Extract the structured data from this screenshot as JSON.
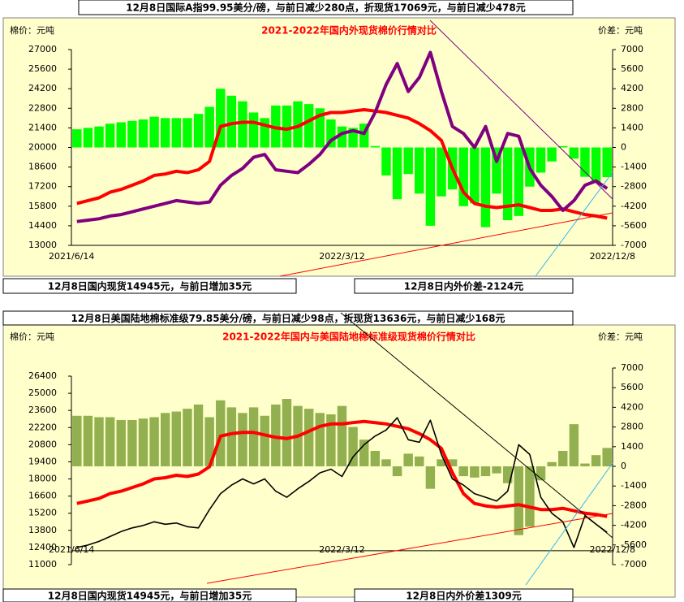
{
  "chart_data": [
    {
      "type": "combo",
      "headline": "12月8日国际A指99.95美分/磅，与前日减少280点，折现货17069元，与前日减少478元",
      "title": "2021-2022年国内外现货棉价行情对比",
      "ylabel": "棉价：元吨",
      "y2label": "价差：元吨",
      "footnotes": [
        "12月8日国内现货14945元，与前日增加35元",
        "12月8日内外价差-2124元"
      ],
      "categories": [
        "2021/6/14",
        null,
        null,
        null,
        null,
        null,
        null,
        null,
        null,
        null,
        null,
        null,
        null,
        null,
        null,
        null,
        null,
        null,
        null,
        null,
        null,
        null,
        null,
        null,
        "2022/3/12",
        null,
        null,
        null,
        null,
        null,
        null,
        null,
        null,
        null,
        null,
        null,
        null,
        null,
        null,
        null,
        null,
        null,
        null,
        null,
        null,
        null,
        null,
        null,
        "2022/12/8"
      ],
      "ylim": [
        13000,
        27000
      ],
      "yticks": [
        13000,
        14400,
        15800,
        17200,
        18600,
        20000,
        21400,
        22800,
        24200,
        25600,
        27000
      ],
      "y2lim": [
        -7000,
        7000
      ],
      "y2ticks": [
        -7000,
        -5600,
        -4200,
        -2800,
        -1400,
        0,
        1400,
        2800,
        4200,
        5600,
        7000
      ],
      "series": [
        {
          "type": "bar",
          "axis": "y2",
          "color": "#00ff00",
          "values": [
            1300,
            1400,
            1500,
            1700,
            1800,
            1900,
            2000,
            2200,
            2100,
            2100,
            2100,
            2400,
            2900,
            4200,
            3700,
            3300,
            2500,
            2100,
            3000,
            3000,
            3300,
            3100,
            2800,
            2000,
            1500,
            1400,
            1700,
            100,
            -2000,
            -3700,
            -1900,
            -3300,
            -5600,
            -3500,
            -3000,
            -4200,
            -4000,
            -5700,
            -3300,
            -5200,
            -4900,
            -2800,
            -1800,
            -1000,
            100,
            -800,
            -2100,
            -2500,
            -2124
          ]
        },
        {
          "type": "line",
          "color": "#ff0000",
          "width": 4,
          "values": [
            16000,
            16200,
            16400,
            16800,
            17000,
            17300,
            17600,
            18000,
            18100,
            18300,
            18200,
            18400,
            19000,
            21500,
            21700,
            21800,
            21800,
            21600,
            21400,
            21300,
            21500,
            21900,
            22300,
            22500,
            22500,
            22600,
            22700,
            22600,
            22500,
            22300,
            22100,
            21700,
            21200,
            20500,
            18500,
            16800,
            16000,
            15800,
            15700,
            15800,
            15900,
            15700,
            15500,
            15500,
            15600,
            15400,
            15200,
            15100,
            14945
          ]
        },
        {
          "type": "line",
          "color": "#800080",
          "width": 4,
          "values": [
            14700,
            14800,
            14900,
            15100,
            15200,
            15400,
            15600,
            15800,
            16000,
            16200,
            16100,
            16000,
            16100,
            17300,
            18000,
            18500,
            19300,
            19500,
            18400,
            18300,
            18200,
            18800,
            19500,
            20500,
            21000,
            21200,
            21000,
            22500,
            24500,
            26000,
            24000,
            25000,
            26800,
            24000,
            21500,
            21000,
            20000,
            21500,
            19000,
            21000,
            20800,
            18500,
            17300,
            16500,
            15500,
            16200,
            17300,
            17600,
            17069
          ]
        }
      ]
    },
    {
      "type": "combo",
      "headline": "12月8日美国陆地棉标准级79.85美分/磅，与前日减少98点，折现货13636元，与前日减少168元",
      "title": "2021-2022年国内与美国陆地棉标准级现货棉价行情对比",
      "ylabel": "棉价：元吨",
      "y2label": "价差：元吨",
      "footnotes": [
        "12月8日国内现货14945元，与前日增加35元",
        "12月8日内外价差1309元"
      ],
      "categories": [
        "2021/6/14",
        null,
        null,
        null,
        null,
        null,
        null,
        null,
        null,
        null,
        null,
        null,
        null,
        null,
        null,
        null,
        null,
        null,
        null,
        null,
        null,
        null,
        null,
        null,
        "2022/3/12",
        null,
        null,
        null,
        null,
        null,
        null,
        null,
        null,
        null,
        null,
        null,
        null,
        null,
        null,
        null,
        null,
        null,
        null,
        null,
        null,
        null,
        null,
        null,
        "2022/12/8"
      ],
      "ylim": [
        11000,
        26400
      ],
      "yticks": [
        11000,
        12400,
        13800,
        15200,
        16600,
        18000,
        19400,
        20800,
        22200,
        23600,
        25000,
        26400
      ],
      "y2lim": [
        -7000,
        7000
      ],
      "y2ticks": [
        -7000,
        -5600,
        -4200,
        -2800,
        -1400,
        0,
        1400,
        2800,
        4200,
        5600,
        7000
      ],
      "series": [
        {
          "type": "bar",
          "axis": "y2",
          "color": "#92b050",
          "values": [
            3600,
            3600,
            3500,
            3500,
            3300,
            3300,
            3400,
            3500,
            3800,
            3900,
            4100,
            4400,
            3500,
            4700,
            4200,
            3800,
            4200,
            3600,
            4400,
            4800,
            4300,
            4100,
            3800,
            3700,
            4300,
            2800,
            1900,
            1100,
            500,
            -700,
            900,
            700,
            -1600,
            500,
            500,
            -700,
            -800,
            -700,
            -500,
            -1200,
            -4900,
            -4300,
            -1000,
            300,
            1100,
            3000,
            200,
            800,
            1309
          ]
        },
        {
          "type": "line",
          "color": "#ff0000",
          "width": 4,
          "values": [
            16000,
            16200,
            16400,
            16800,
            17000,
            17300,
            17600,
            18000,
            18100,
            18300,
            18200,
            18400,
            19000,
            21500,
            21700,
            21800,
            21800,
            21600,
            21400,
            21300,
            21500,
            21900,
            22300,
            22500,
            22500,
            22600,
            22700,
            22600,
            22500,
            22300,
            22100,
            21700,
            21200,
            20500,
            18500,
            16800,
            16000,
            15800,
            15700,
            15800,
            15900,
            15700,
            15500,
            15500,
            15600,
            15400,
            15200,
            15100,
            14945
          ]
        },
        {
          "type": "line",
          "color": "#000000",
          "width": 1.6,
          "values": [
            12400,
            12600,
            12900,
            13300,
            13700,
            14000,
            14200,
            14500,
            14300,
            14400,
            14100,
            14000,
            15500,
            16800,
            17500,
            18000,
            17600,
            18000,
            17000,
            16500,
            17200,
            17800,
            18500,
            18800,
            18200,
            19800,
            20800,
            21500,
            22000,
            23000,
            21200,
            21000,
            22800,
            20000,
            18000,
            17500,
            16800,
            16500,
            16200,
            17000,
            20800,
            20000,
            16500,
            15200,
            14500,
            12400,
            15000,
            14300,
            13636
          ]
        }
      ]
    }
  ]
}
